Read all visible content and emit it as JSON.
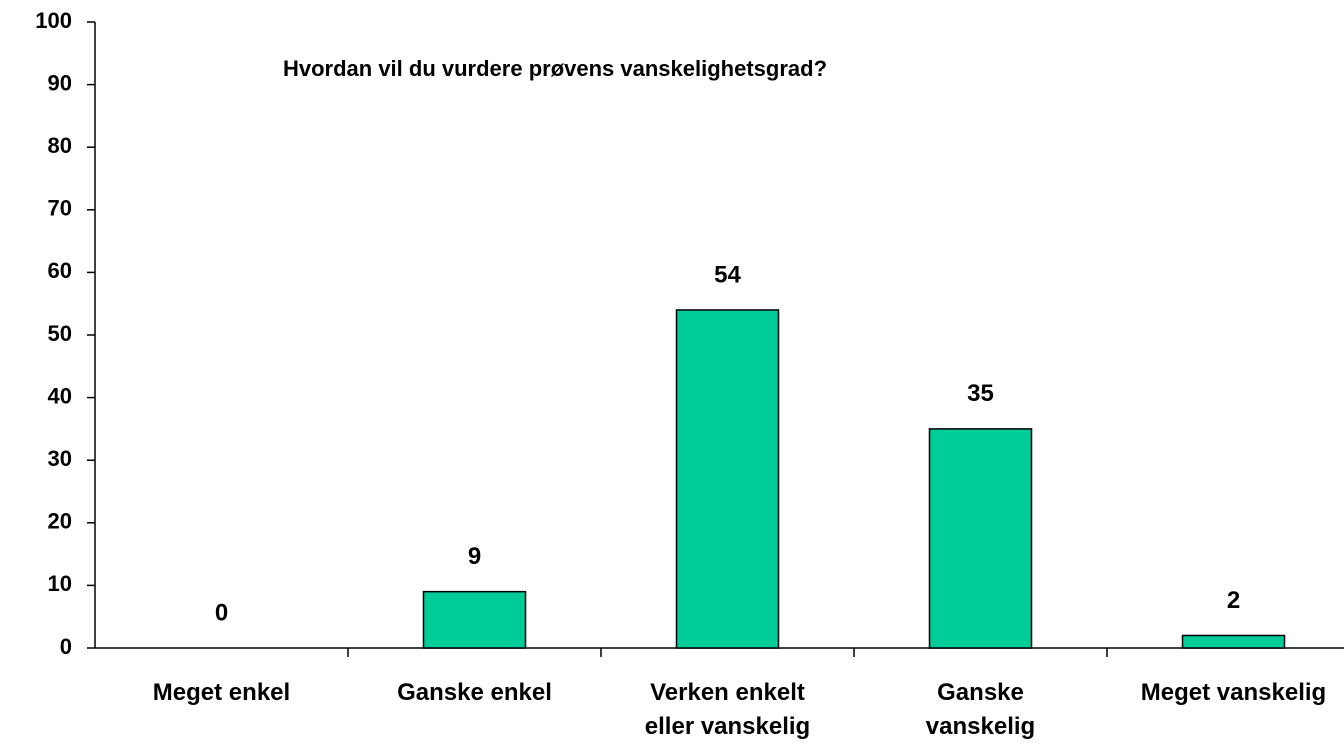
{
  "chart_data": {
    "type": "bar",
    "title": "Hvordan vil du vurdere prøvens vanskelighetsgrad?",
    "categories": [
      "Meget enkel",
      "Ganske enkel",
      "Verken enkelt eller vanskelig",
      "Ganske vanskelig",
      "Meget vanskelig"
    ],
    "values": [
      0,
      9,
      54,
      35,
      2
    ],
    "color": "#00cc99",
    "ylim": [
      0,
      100
    ],
    "yticks": [
      0,
      10,
      20,
      30,
      40,
      50,
      60,
      70,
      80,
      90,
      100
    ],
    "grid": false
  }
}
